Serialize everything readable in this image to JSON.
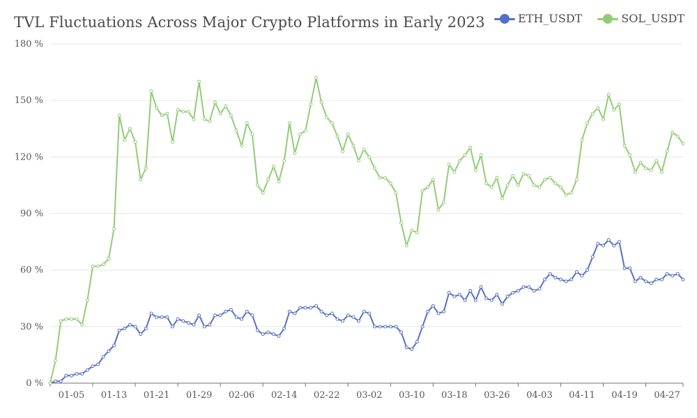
{
  "chart_data": {
    "type": "line",
    "title": "TVL Fluctuations Across Major Crypto Platforms in Early 2023",
    "xlabel": "",
    "ylabel": "",
    "ylim": [
      0,
      180
    ],
    "yticks": [
      0,
      30,
      60,
      90,
      120,
      150,
      180
    ],
    "ytick_labels": [
      "0 %",
      "30 %",
      "60 %",
      "90 %",
      "120 %",
      "150 %",
      "180 %"
    ],
    "x_start": "2023-01-01",
    "x_end": "2023-04-30",
    "xtick_labels": [
      "01-05",
      "01-13",
      "01-21",
      "01-29",
      "02-06",
      "02-14",
      "02-22",
      "03-02",
      "03-10",
      "03-18",
      "03-26",
      "04-03",
      "04-11",
      "04-19",
      "04-27"
    ],
    "xtick_indices": [
      4,
      12,
      20,
      28,
      36,
      44,
      52,
      60,
      68,
      76,
      84,
      92,
      100,
      108,
      116
    ],
    "grid": true,
    "legend_position": "top-right",
    "series": [
      {
        "name": "ETH_USDT",
        "color": "#5470c6",
        "values": [
          0,
          1,
          1,
          4,
          4,
          5,
          5,
          7,
          9,
          10,
          14,
          17,
          20,
          28,
          29,
          31,
          30,
          26,
          29,
          37,
          35,
          35,
          35,
          30,
          34,
          33,
          32,
          31,
          36,
          30,
          31,
          36,
          36,
          38,
          39,
          35,
          34,
          38,
          36,
          28,
          26,
          27,
          26,
          25,
          29,
          38,
          37,
          40,
          40,
          40,
          41,
          38,
          36,
          37,
          34,
          33,
          36,
          35,
          33,
          38,
          37,
          30,
          30,
          30,
          30,
          30,
          27,
          19,
          18,
          22,
          30,
          38,
          41,
          37,
          38,
          48,
          46,
          47,
          44,
          49,
          44,
          51,
          45,
          44,
          47,
          42,
          46,
          48,
          49,
          51,
          51,
          49,
          50,
          55,
          58,
          56,
          55,
          54,
          55,
          59,
          57,
          60,
          67,
          74,
          73,
          76,
          73,
          75,
          61,
          61,
          54,
          56,
          54,
          53,
          55,
          55,
          58,
          57,
          58,
          55
        ]
      },
      {
        "name": "SOL_USDT",
        "color": "#91cc75",
        "values": [
          0,
          12,
          33,
          34,
          34,
          34,
          31,
          44,
          62,
          62,
          63,
          66,
          82,
          142,
          129,
          135,
          128,
          108,
          114,
          155,
          146,
          142,
          143,
          128,
          145,
          144,
          144,
          140,
          160,
          140,
          139,
          149,
          143,
          147,
          142,
          134,
          126,
          138,
          132,
          105,
          101,
          108,
          115,
          107,
          118,
          138,
          122,
          132,
          134,
          148,
          162,
          149,
          141,
          138,
          131,
          123,
          132,
          126,
          118,
          124,
          120,
          114,
          109,
          109,
          106,
          101,
          85,
          73,
          81,
          80,
          102,
          104,
          108,
          92,
          96,
          116,
          112,
          118,
          121,
          125,
          113,
          121,
          106,
          104,
          109,
          98,
          105,
          110,
          105,
          111,
          110,
          105,
          104,
          108,
          109,
          106,
          104,
          100,
          101,
          108,
          129,
          138,
          143,
          146,
          140,
          153,
          145,
          148,
          126,
          121,
          112,
          117,
          114,
          113,
          118,
          112,
          123,
          133,
          131,
          127
        ]
      }
    ]
  }
}
